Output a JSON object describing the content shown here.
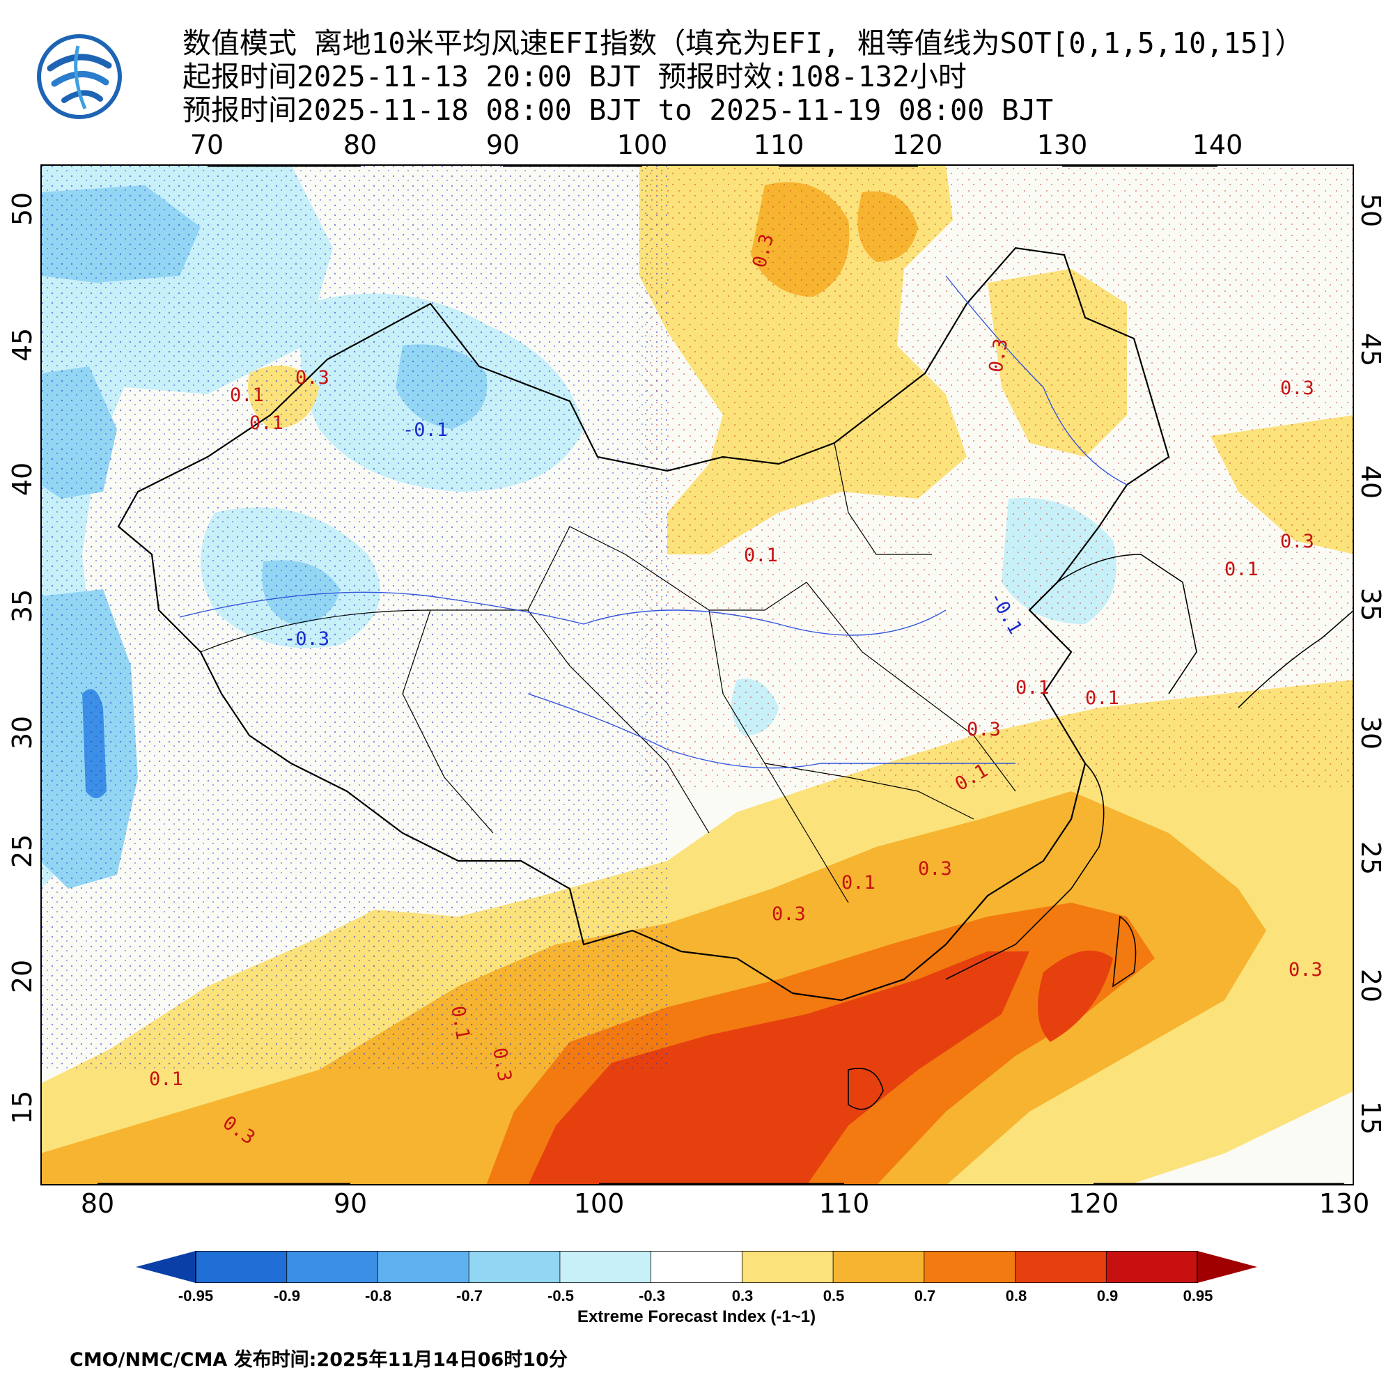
{
  "header": {
    "title_line1": "数值模式 离地10米平均风速EFI指数（填充为EFI, 粗等值线为SOT[0,1,5,10,15]）",
    "title_line2": "起报时间2025-11-13 20:00 BJT 预报时效:108-132小时",
    "title_line3": "预报时间2025-11-18 08:00 BJT to 2025-11-19 08:00 BJT"
  },
  "map": {
    "top_lon_labels": [
      "70",
      "80",
      "90",
      "100",
      "110",
      "120",
      "130",
      "140"
    ],
    "bottom_lon_labels": [
      "80",
      "90",
      "100",
      "110",
      "120",
      "130"
    ],
    "left_lat_labels": [
      "50",
      "45",
      "40",
      "35",
      "30",
      "25",
      "20",
      "15"
    ],
    "right_lat_labels": [
      "50",
      "45",
      "40",
      "35",
      "30",
      "25",
      "20",
      "15"
    ],
    "contour_labels": [
      "0.3",
      "0.1",
      "0.3",
      "-0.1",
      "0.1",
      "0.3",
      "-0.3",
      "0.3",
      "0.1",
      "0.1",
      "0.1",
      "0.3",
      "0.1",
      "0.3",
      "0.3",
      "0.1",
      "0.3",
      "0.3",
      "0.1",
      "0.3",
      "0.1",
      "0.3",
      "-0.1",
      "0.1"
    ],
    "colors": {
      "blue_dark": "#1a5fc8",
      "blue_mid": "#3c8fe6",
      "blue_light": "#6cbcf0",
      "cyan_light": "#b4e8f5",
      "white": "#fbfbf5",
      "yellow": "#fbe27a",
      "orange_light": "#f6b430",
      "orange": "#f27a10",
      "red": "#e6400f",
      "dark_red": "#c81010"
    }
  },
  "colorbar": {
    "labels": [
      "-0.95",
      "-0.9",
      "-0.8",
      "-0.7",
      "-0.5",
      "-0.3",
      "0.3",
      "0.5",
      "0.7",
      "0.8",
      "0.9",
      "0.95"
    ],
    "colors": [
      "#0b3fa8",
      "#1f6fd6",
      "#3c8fe6",
      "#5fb0ef",
      "#93d6f4",
      "#c8f0f8",
      "#ffffff",
      "#fbe27a",
      "#f6b430",
      "#f27a10",
      "#e6400f",
      "#c81010",
      "#a00000"
    ],
    "title": "Extreme Forecast Index (-1~1)"
  },
  "footer": {
    "text": "CMO/NMC/CMA  发布时间:2025年11月14日06时10分"
  }
}
